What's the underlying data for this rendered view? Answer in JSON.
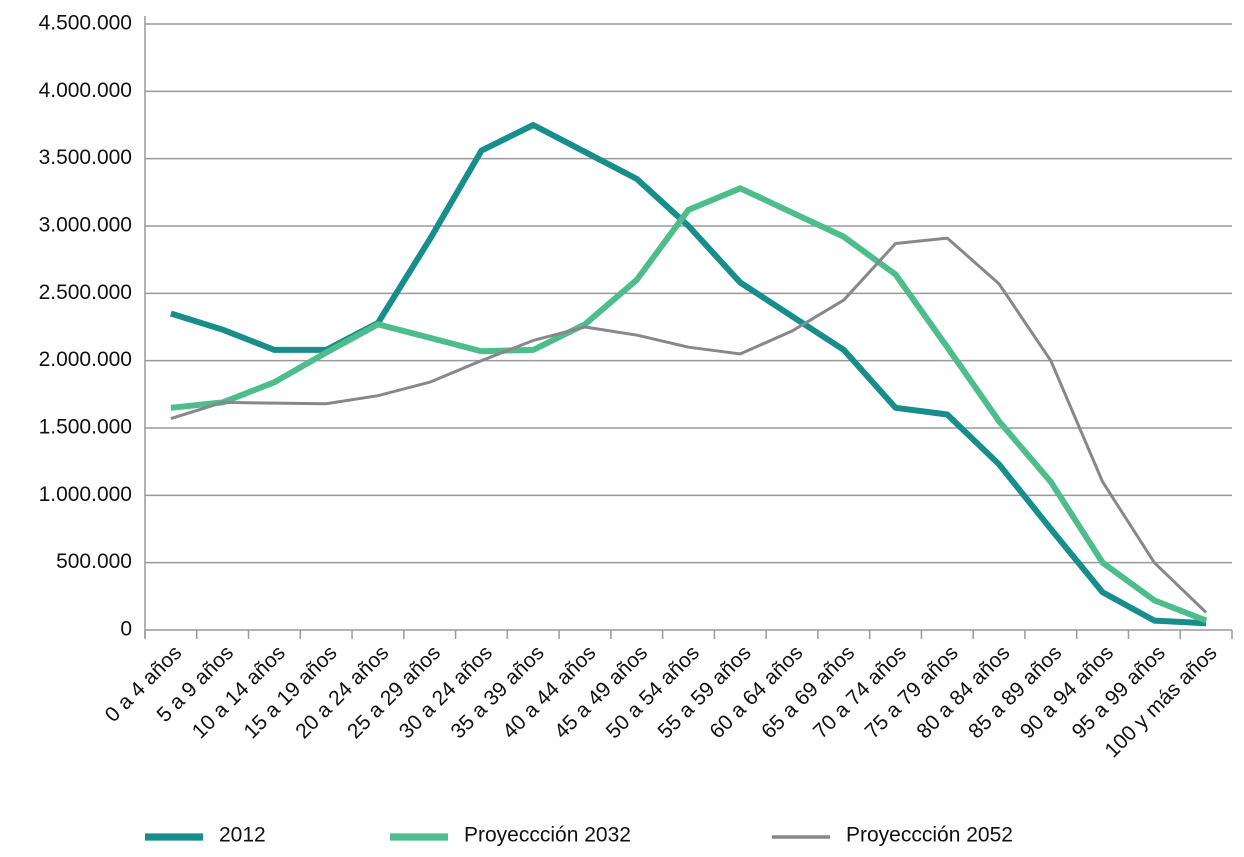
{
  "chart_data": {
    "type": "line",
    "categories": [
      "0 a 4 años",
      "5 a 9 años",
      "10 a 14 años",
      "15 a 19 años",
      "20 a 24 años",
      "25 a 29 años",
      "30 a 24 años",
      "35 a 39 años",
      "40 a 44 años",
      "45 a 49 años",
      "50 a 54 años",
      "55 a 59 años",
      "60 a 64 años",
      "65 a 69 años",
      "70 a 74 años",
      "75 a 79 años",
      "80 a 84 años",
      "85 a 89 años",
      "90 a 94 años",
      "95 a 99 años",
      "100 y más años"
    ],
    "series": [
      {
        "name": "2012",
        "color": "#178d8c",
        "values": [
          2350000,
          2230000,
          2080000,
          2080000,
          2280000,
          2900000,
          3560000,
          3750000,
          3550000,
          3350000,
          3000000,
          2580000,
          2330000,
          2080000,
          1650000,
          1600000,
          1230000,
          750000,
          280000,
          70000,
          50000
        ]
      },
      {
        "name": "Proyeccción 2032",
        "color": "#4dbd8b",
        "values": [
          1650000,
          1690000,
          1840000,
          2060000,
          2270000,
          2170000,
          2070000,
          2080000,
          2270000,
          2600000,
          3120000,
          3280000,
          3100000,
          2920000,
          2640000,
          2100000,
          1550000,
          1100000,
          500000,
          220000,
          70000
        ]
      },
      {
        "name": "Proyeccción 2052",
        "color": "#88888c",
        "values": [
          1570000,
          1690000,
          1685000,
          1680000,
          1740000,
          1840000,
          2000000,
          2150000,
          2250000,
          2190000,
          2100000,
          2050000,
          2220000,
          2450000,
          2870000,
          2910000,
          2570000,
          2000000,
          1100000,
          500000,
          130000
        ]
      }
    ],
    "ylim": [
      0,
      4500000
    ],
    "yticks": [
      0,
      {
        "value": 500000,
        "label": "500.000"
      },
      {
        "value": 1000000,
        "label": "1.000.000"
      },
      {
        "value": 1500000,
        "label": "1.500.000"
      },
      {
        "value": 2000000,
        "label": "2.000.000"
      },
      {
        "value": 2500000,
        "label": "2.500.000"
      },
      {
        "value": 3000000,
        "label": "3.000.000"
      },
      {
        "value": 3500000,
        "label": "3.500.000"
      },
      {
        "value": 4000000,
        "label": "4.000.000"
      },
      {
        "value": 4500000,
        "label": "4.500.000"
      }
    ],
    "grid": true
  }
}
